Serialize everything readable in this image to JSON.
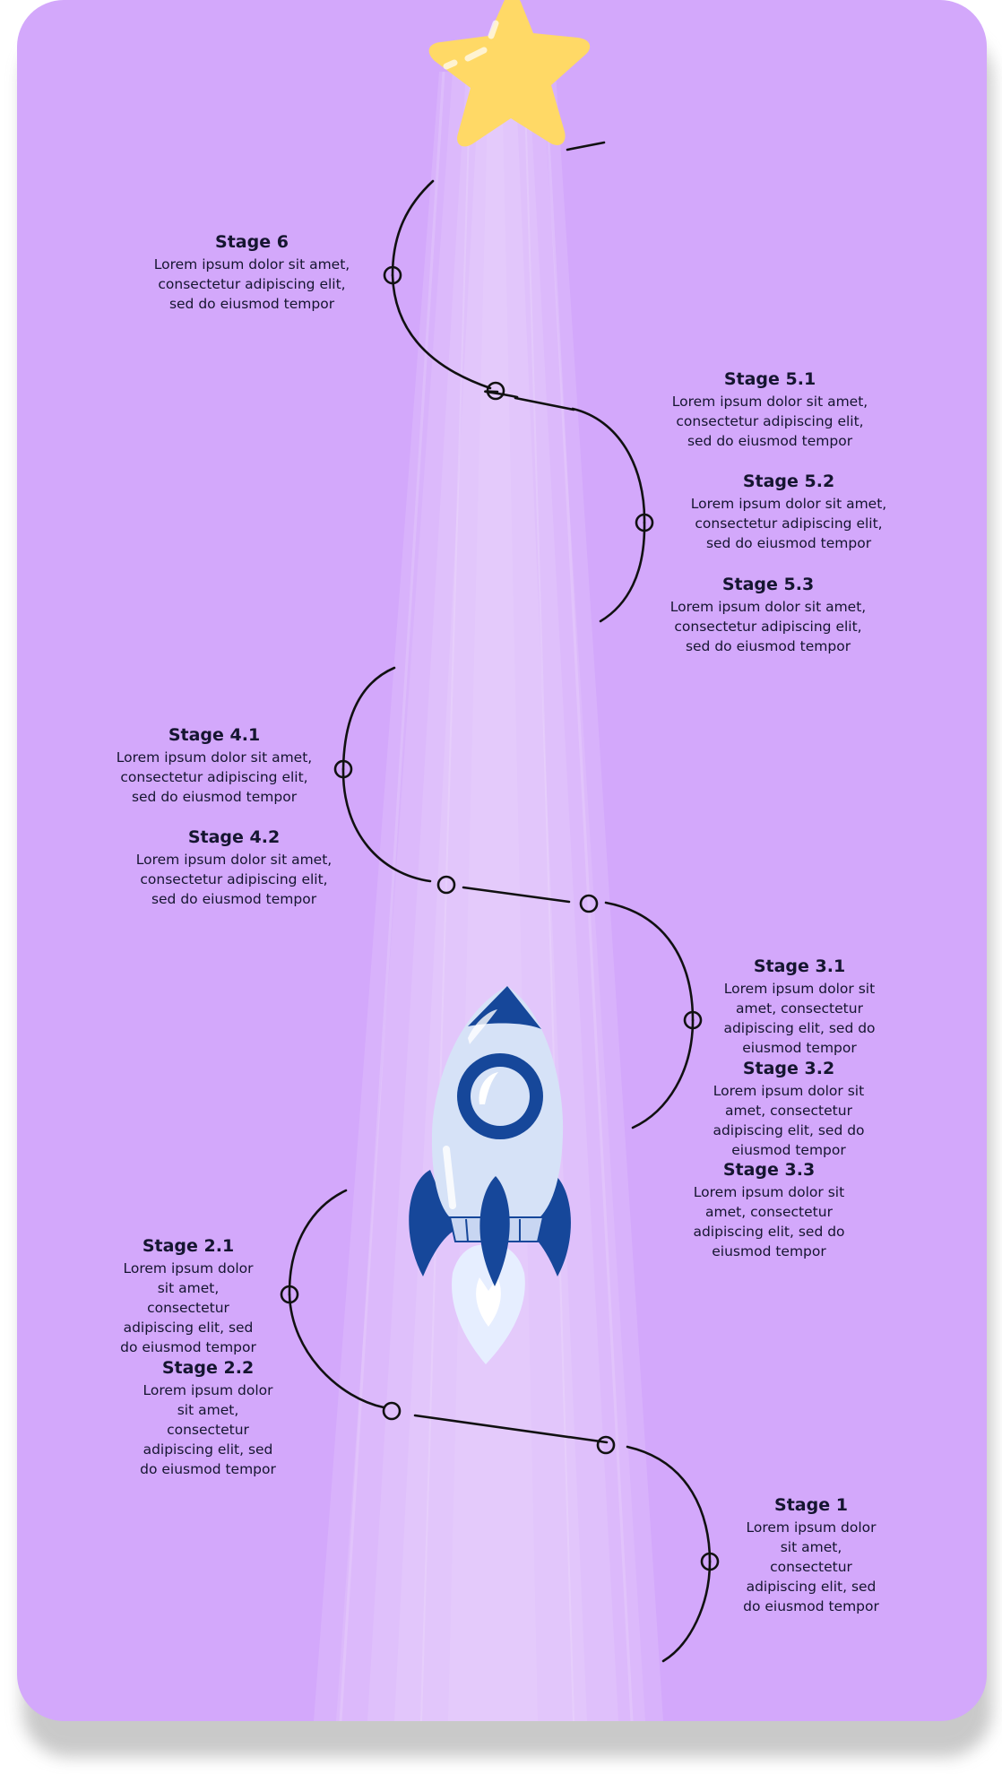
{
  "colors": {
    "background": "#d3a8fb",
    "beam": "#ffffff",
    "path": "#111111",
    "star": "#ffd966",
    "rocket_body": "#d6e2f7",
    "rocket_dark": "#16479a",
    "flame": "#e6eeff"
  },
  "stages": [
    {
      "title": "Stage 6",
      "text": "Lorem ipsum dolor sit amet, consectetur adipiscing elit, sed do eiusmod tempor"
    },
    {
      "title": "Stage 5.1",
      "text": "Lorem ipsum dolor sit amet, consectetur adipiscing elit, sed do eiusmod tempor"
    },
    {
      "title": "Stage 5.2",
      "text": "Lorem ipsum dolor sit amet, consectetur adipiscing elit, sed do eiusmod tempor"
    },
    {
      "title": "Stage 5.3",
      "text": "Lorem ipsum dolor sit amet, consectetur adipiscing elit, sed do eiusmod tempor"
    },
    {
      "title": "Stage 4.1",
      "text": "Lorem ipsum dolor sit amet, consectetur adipiscing elit, sed do eiusmod tempor"
    },
    {
      "title": "Stage 4.2",
      "text": "Lorem ipsum dolor sit amet, consectetur adipiscing elit, sed do eiusmod tempor"
    },
    {
      "title": "Stage 3.1",
      "text": "Lorem ipsum dolor sit amet, consectetur adipiscing elit, sed do eiusmod tempor"
    },
    {
      "title": "Stage 3.2",
      "text": "Lorem ipsum dolor sit amet, consectetur adipiscing elit, sed do eiusmod tempor"
    },
    {
      "title": "Stage 3.3",
      "text": "Lorem ipsum dolor sit amet, consectetur adipiscing elit, sed do eiusmod tempor"
    },
    {
      "title": "Stage 2.1",
      "text": "Lorem ipsum dolor sit amet, consectetur adipiscing elit, sed do eiusmod tempor"
    },
    {
      "title": "Stage 2.2",
      "text": "Lorem ipsum dolor sit amet, consectetur adipiscing elit, sed do eiusmod tempor"
    },
    {
      "title": "Stage 1",
      "text": "Lorem ipsum dolor sit amet, consectetur adipiscing elit, sed do eiusmod tempor"
    }
  ]
}
